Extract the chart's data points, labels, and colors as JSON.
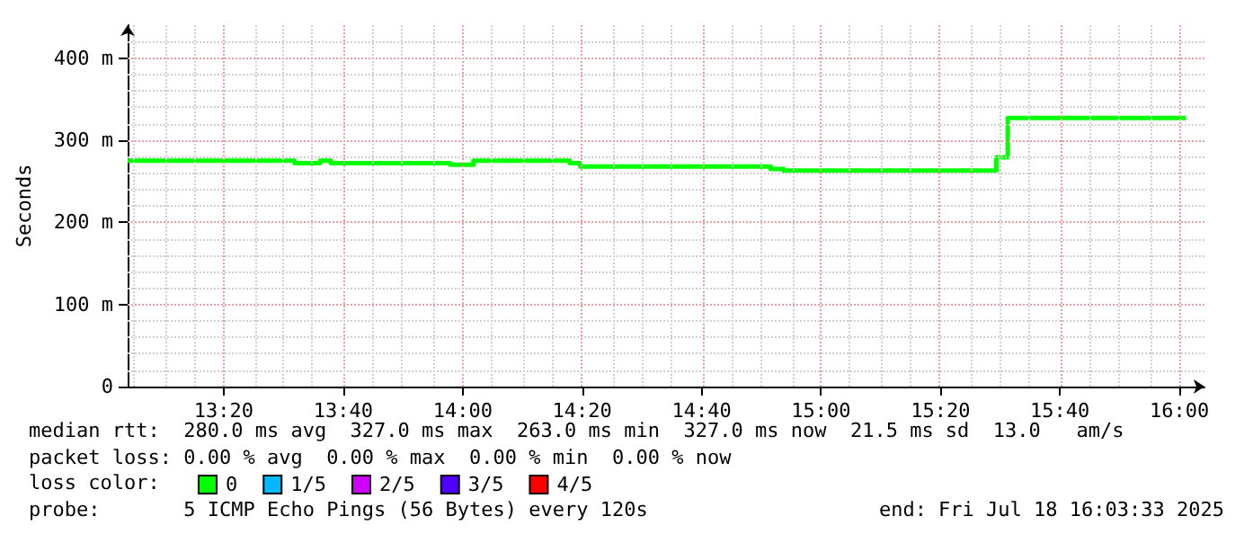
{
  "chart_data": {
    "type": "step",
    "ylabel": "Seconds",
    "x": [
      13.065,
      13.531,
      13.602,
      13.632,
      13.965,
      14.03,
      14.299,
      14.328,
      14.859,
      14.896,
      15.489,
      15.521,
      16.018
    ],
    "series": [
      {
        "name": "0",
        "color": "#00ff00",
        "values": [
          275,
          272,
          275,
          272,
          270,
          275,
          272,
          268,
          265,
          263,
          279,
          327,
          327
        ]
      },
      {
        "name": "1/5",
        "color": "#00b8ff",
        "values": [
          null,
          null,
          null,
          null,
          null,
          null,
          null,
          null,
          null,
          null,
          null,
          null,
          null
        ]
      },
      {
        "name": "2/5",
        "color": "#d000ff",
        "values": [
          null,
          null,
          null,
          null,
          null,
          null,
          null,
          null,
          null,
          null,
          null,
          null,
          null
        ]
      },
      {
        "name": "3/5",
        "color": "#5000ff",
        "values": [
          null,
          null,
          null,
          null,
          null,
          null,
          null,
          null,
          null,
          null,
          null,
          null,
          null
        ]
      },
      {
        "name": "4/5",
        "color": "#ff0000",
        "values": [
          null,
          null,
          null,
          null,
          null,
          null,
          null,
          null,
          null,
          null,
          null,
          null,
          null
        ]
      }
    ],
    "xlim": [
      13.065,
      16.07
    ],
    "xticks": [
      {
        "value": 13.0833,
        "label": null
      },
      {
        "value": 13.1667,
        "label": null
      },
      {
        "value": 13.25,
        "label": null
      },
      {
        "value": 13.3333,
        "label": "13:20"
      },
      {
        "value": 13.4167,
        "label": null
      },
      {
        "value": 13.5,
        "label": null
      },
      {
        "value": 13.5833,
        "label": null
      },
      {
        "value": 13.6667,
        "label": "13:40"
      },
      {
        "value": 13.75,
        "label": null
      },
      {
        "value": 13.8333,
        "label": null
      },
      {
        "value": 13.9167,
        "label": null
      },
      {
        "value": 14,
        "label": "14:00"
      },
      {
        "value": 14.0833,
        "label": null
      },
      {
        "value": 14.1667,
        "label": null
      },
      {
        "value": 14.25,
        "label": null
      },
      {
        "value": 14.3333,
        "label": "14:20"
      },
      {
        "value": 14.4167,
        "label": null
      },
      {
        "value": 14.5,
        "label": null
      },
      {
        "value": 14.5833,
        "label": null
      },
      {
        "value": 14.6667,
        "label": "14:40"
      },
      {
        "value": 14.75,
        "label": null
      },
      {
        "value": 14.8333,
        "label": null
      },
      {
        "value": 14.9167,
        "label": null
      },
      {
        "value": 15,
        "label": "15:00"
      },
      {
        "value": 15.0833,
        "label": null
      },
      {
        "value": 15.1667,
        "label": null
      },
      {
        "value": 15.25,
        "label": null
      },
      {
        "value": 15.3333,
        "label": "15:20"
      },
      {
        "value": 15.4167,
        "label": null
      },
      {
        "value": 15.5,
        "label": null
      },
      {
        "value": 15.5833,
        "label": null
      },
      {
        "value": 15.6667,
        "label": "15:40"
      },
      {
        "value": 15.75,
        "label": null
      },
      {
        "value": 15.8333,
        "label": null
      },
      {
        "value": 15.9167,
        "label": null
      },
      {
        "value": 16,
        "label": "16:00"
      }
    ],
    "ylim": [
      0,
      440
    ],
    "yticks": [
      0,
      {
        "value": 20,
        "label": null
      },
      {
        "value": 40,
        "label": null
      },
      {
        "value": 60,
        "label": null
      },
      {
        "value": 80,
        "label": null
      },
      {
        "value": 100,
        "label": "100 m"
      },
      {
        "value": 120,
        "label": null
      },
      {
        "value": 140,
        "label": null
      },
      {
        "value": 160,
        "label": null
      },
      {
        "value": 180,
        "label": null
      },
      {
        "value": 200,
        "label": "200 m"
      },
      {
        "value": 220,
        "label": null
      },
      {
        "value": 240,
        "label": null
      },
      {
        "value": 260,
        "label": null
      },
      {
        "value": 280,
        "label": null
      },
      {
        "value": 300,
        "label": "300 m"
      },
      {
        "value": 320,
        "label": null
      },
      {
        "value": 340,
        "label": null
      },
      {
        "value": 360,
        "label": null
      },
      {
        "value": 380,
        "label": null
      },
      {
        "value": 400,
        "label": "400 m"
      },
      {
        "value": 420,
        "label": null
      }
    ],
    "grid": true,
    "legend": "bottom left",
    "annotations": [
      "median rtt:  280.0 ms avg  327.0 ms max  263.0 ms min  327.0 ms now  21.5 ms sd  13.0   am/s",
      "packet loss: 0.00 % avg  0.00 % max  0.00 % min  0.00 % now",
      "loss color:",
      "probe:       5 ICMP Echo Pings (56 Bytes) every 120s",
      "end: Fri Jul 18 16:03:33 2025"
    ]
  }
}
